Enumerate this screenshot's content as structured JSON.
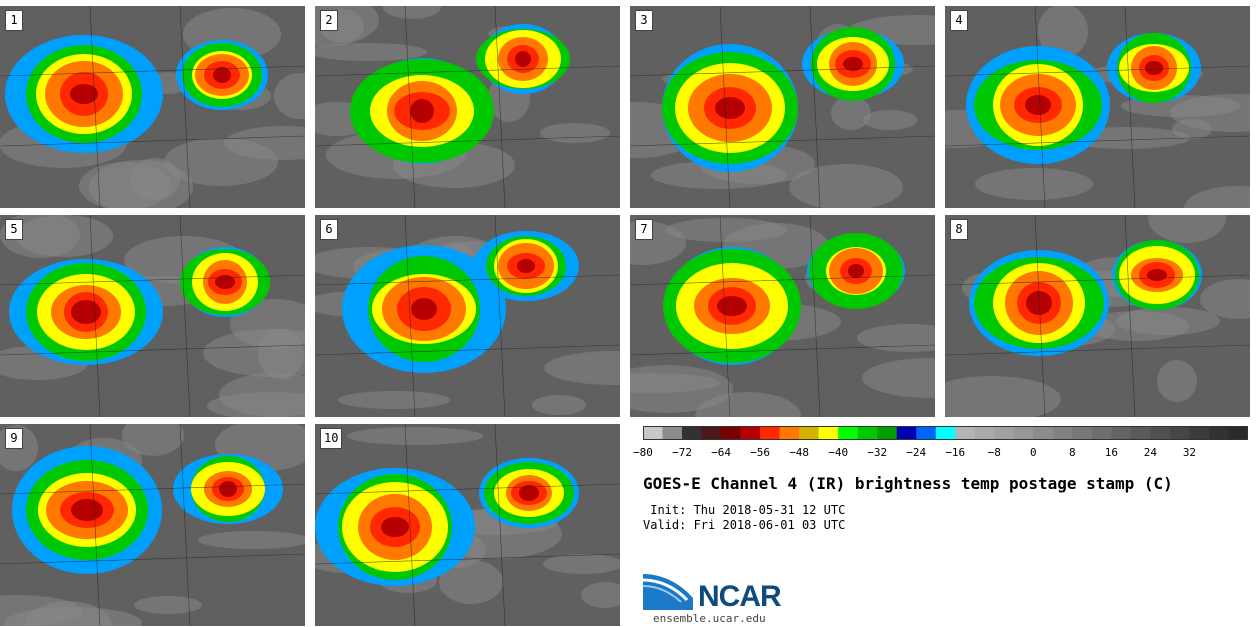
{
  "panels": [
    "1",
    "2",
    "3",
    "4",
    "5",
    "6",
    "7",
    "8",
    "9",
    "10"
  ],
  "colorbar": {
    "colors": [
      "#c8c8c8",
      "#8c8c8c",
      "#323232",
      "#4a1818",
      "#7a0000",
      "#b40000",
      "#ff2800",
      "#ff7800",
      "#d2b400",
      "#ffff00",
      "#00ff00",
      "#00c800",
      "#00a000",
      "#0000b4",
      "#0064ff",
      "#00ffff",
      "#b4b4b4",
      "#aaaaaa",
      "#a0a0a0",
      "#969696",
      "#8c8c8c",
      "#828282",
      "#787878",
      "#6e6e6e",
      "#646464",
      "#5a5a5a",
      "#505050",
      "#464646",
      "#3c3c3c",
      "#323232",
      "#2a2a2a"
    ],
    "ticks": [
      "−80",
      "−72",
      "−64",
      "−56",
      "−48",
      "−40",
      "−32",
      "−24",
      "−16",
      "−8",
      "0",
      "8",
      "16",
      "24",
      "32"
    ]
  },
  "title": "GOES-E Channel 4 (IR) brightness temp postage stamp (C)",
  "init_line": " Init: Thu 2018-05-31 12 UTC",
  "valid_line": "Valid: Fri 2018-06-01 03 UTC",
  "logo": {
    "name": "NCAR",
    "url": "ensemble.ucar.edu"
  }
}
